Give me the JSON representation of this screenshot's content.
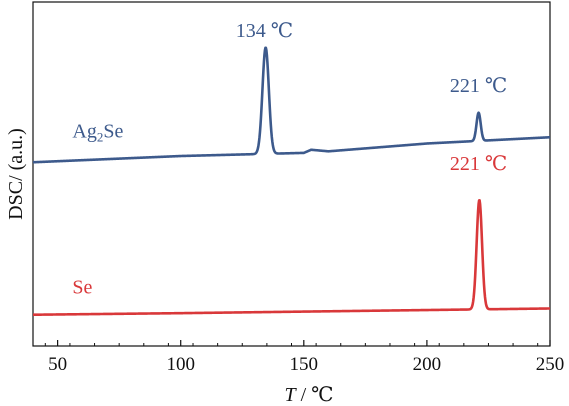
{
  "chart_data": {
    "type": "line",
    "xlabel": {
      "var": "T",
      "sep": " / ",
      "unit": "℃"
    },
    "ylabel": "DSC/ (a.u.)",
    "xlim": [
      40,
      250
    ],
    "xticks": [
      50,
      100,
      150,
      200,
      250
    ],
    "y_ticks_visible": false,
    "grid": false,
    "legend": "none",
    "series": [
      {
        "name": "Ag",
        "name_sub": "2",
        "name_tail": "Se",
        "color": "#3d5a8c",
        "baseline": [
          [
            40,
            0.0
          ],
          [
            100,
            0.08
          ],
          [
            150,
            0.12
          ],
          [
            153,
            0.16
          ],
          [
            160,
            0.14
          ],
          [
            200,
            0.24
          ],
          [
            250,
            0.32
          ]
        ],
        "peaks": [
          {
            "center": 134.5,
            "height": 1.36,
            "width": 1.3
          },
          {
            "center": 221.0,
            "height": 0.36,
            "width": 0.85
          }
        ]
      },
      {
        "name": "Se",
        "color": "#d9383a",
        "baseline": [
          [
            40,
            -1.95
          ],
          [
            100,
            -1.93
          ],
          [
            150,
            -1.91
          ],
          [
            200,
            -1.89
          ],
          [
            250,
            -1.87
          ]
        ],
        "peaks": [
          {
            "center": 221.3,
            "height": 1.4,
            "width": 1.1
          }
        ]
      }
    ],
    "annotations": [
      {
        "text": "134 ℃",
        "x": 134,
        "y": 1.6,
        "color": "#3d5a8c"
      },
      {
        "text": "221 ℃",
        "x": 221,
        "y": 0.9,
        "color": "#3d5a8c"
      },
      {
        "text": "221 ℃",
        "x": 221,
        "y": -0.1,
        "color": "#d9383a"
      }
    ],
    "ylim": [
      -2.35,
      2.05
    ]
  }
}
